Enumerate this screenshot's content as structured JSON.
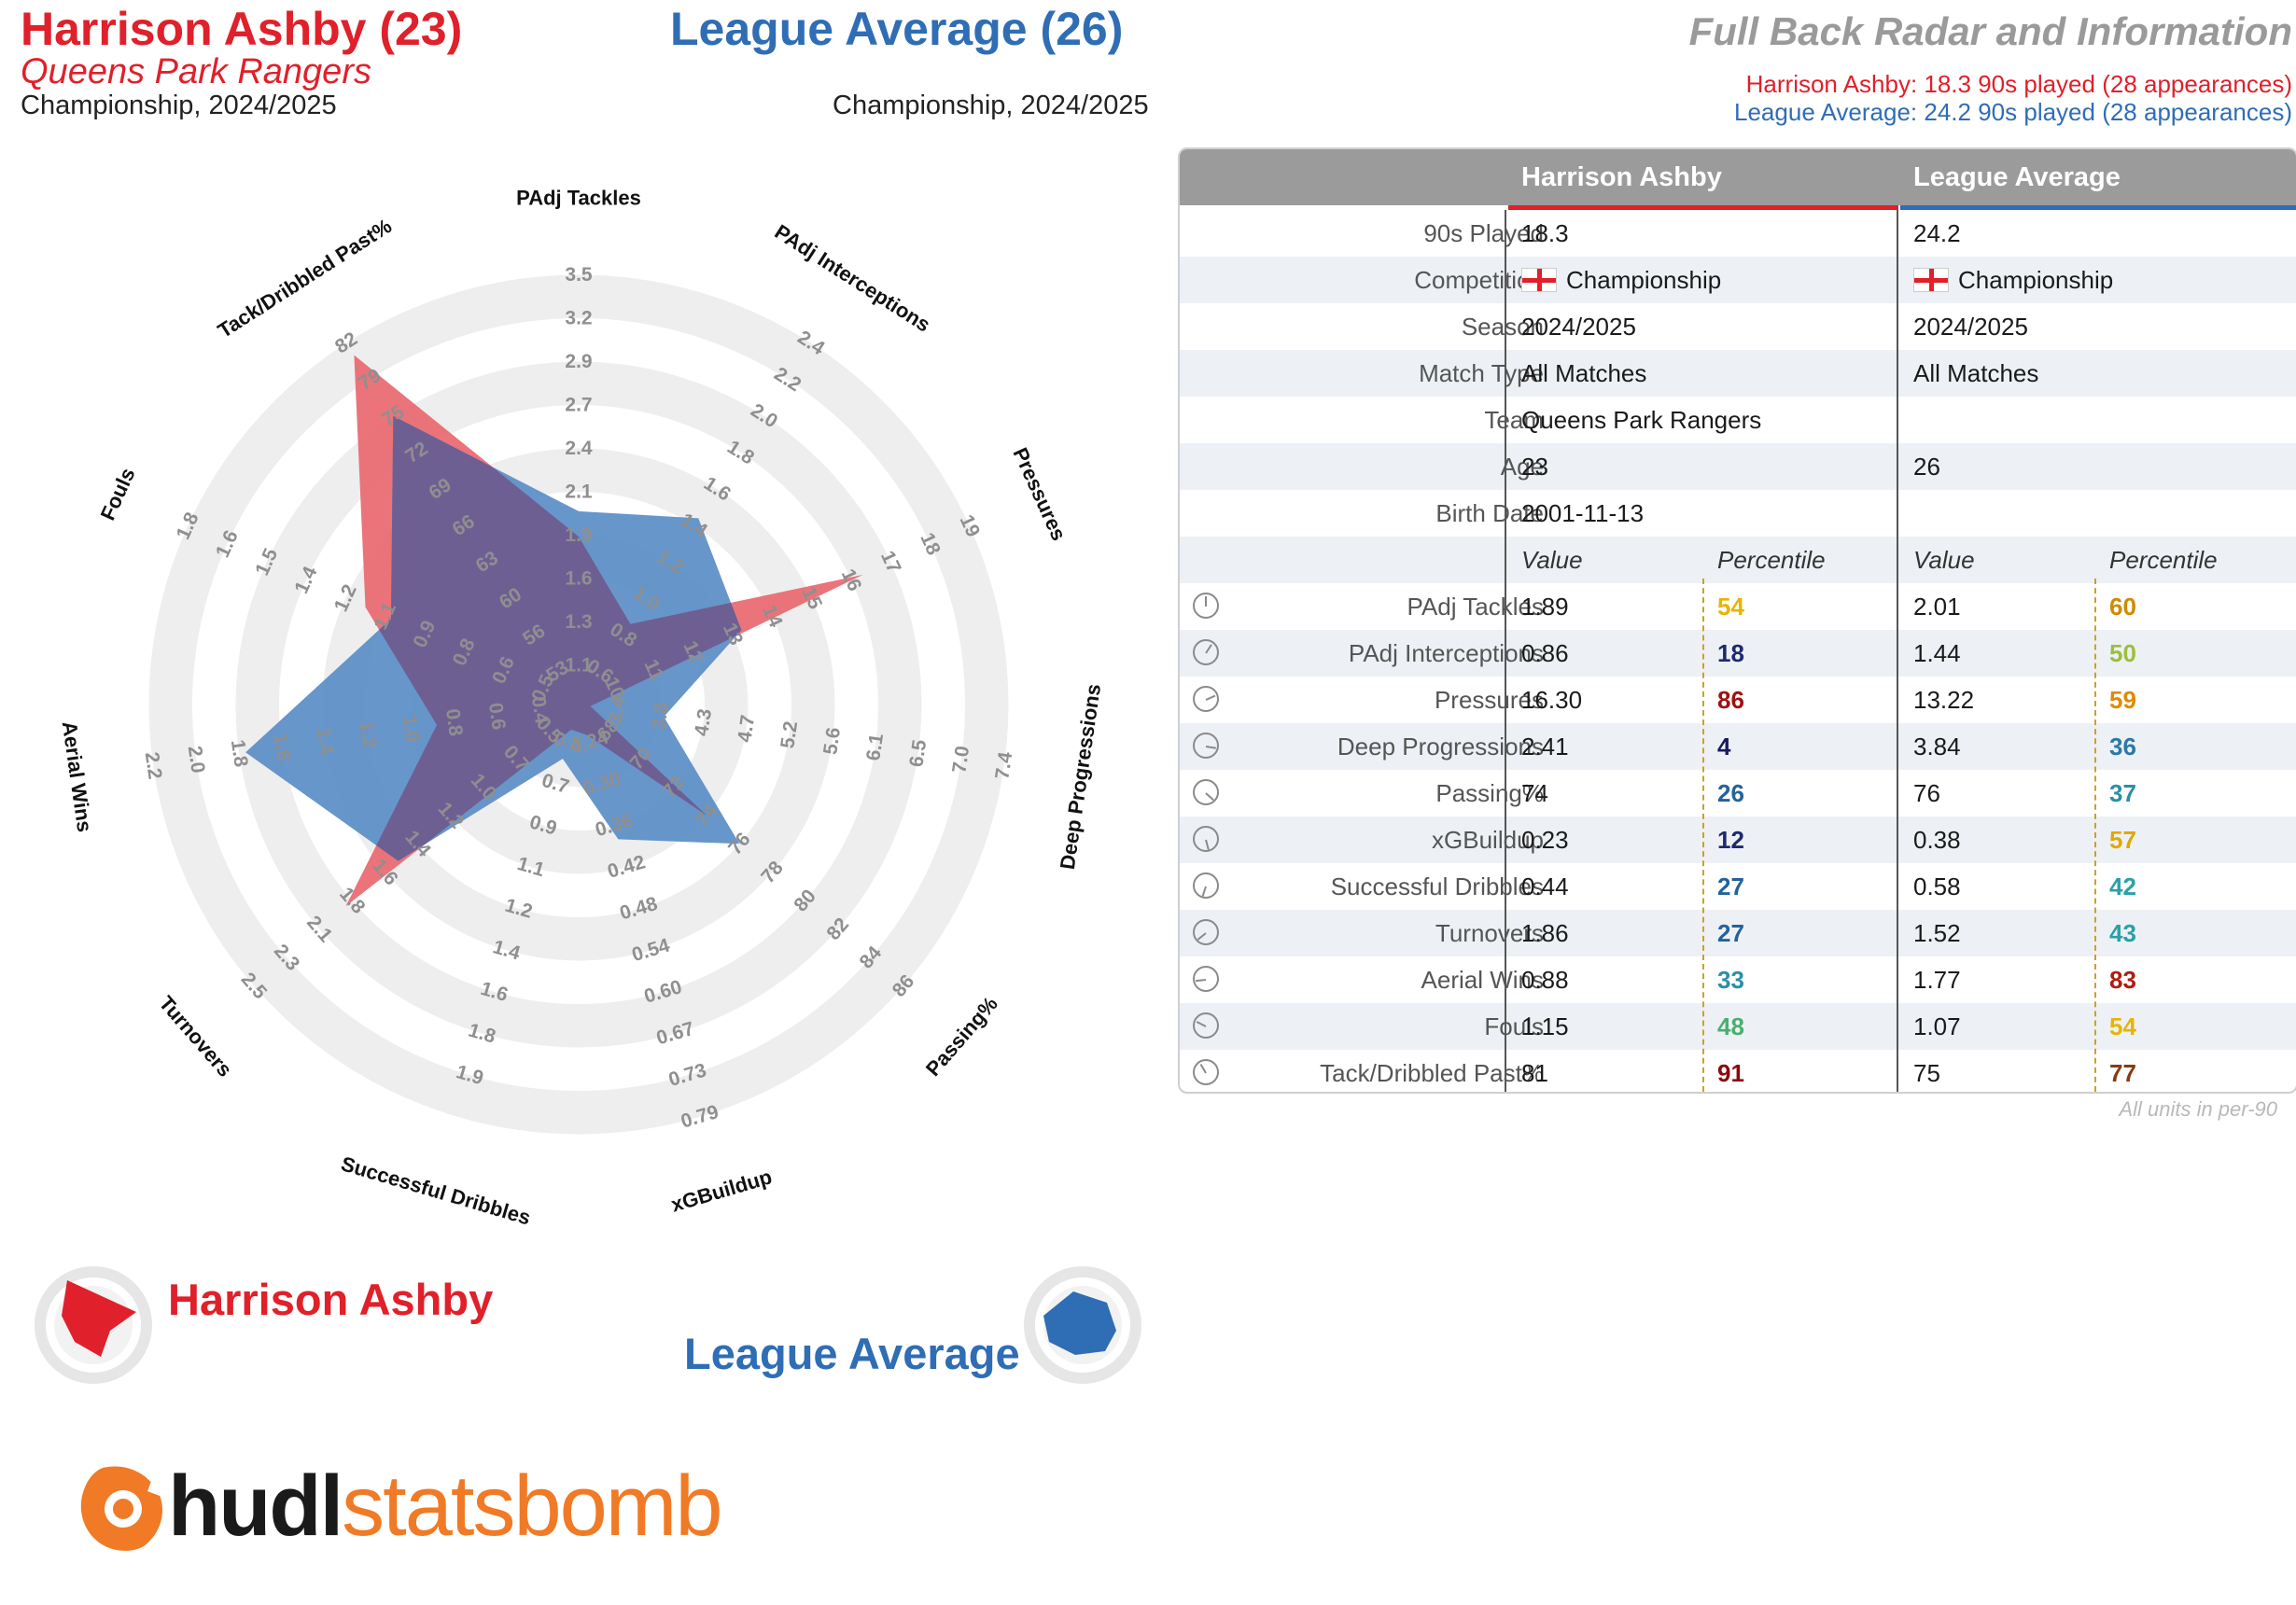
{
  "header": {
    "player_title": "Harrison Ashby (23)",
    "player_team": "Queens Park Rangers",
    "player_comp": "Championship, 2024/2025",
    "league_title": "League Average (26)",
    "league_comp": "Championship, 2024/2025",
    "main_title": "Full Back Radar and Information",
    "player_note": "Harrison Ashby: 18.3 90s played (28 appearances)",
    "league_note": "League Average: 24.2 90s played (28 appearances)"
  },
  "colors": {
    "player": "#e0202a",
    "league": "#2f6db5",
    "player_fill": "#e8656b",
    "league_fill": "#5a8dc7",
    "overlap": "#6e5f93",
    "ring": "#eeeeee"
  },
  "chart_data": {
    "type": "radar",
    "metrics": [
      {
        "name": "PAdj Tackles",
        "ticks": [
          "1.1",
          "1.3",
          "1.6",
          "1.9",
          "2.1",
          "2.4",
          "2.7",
          "2.9",
          "3.2",
          "3.5"
        ]
      },
      {
        "name": "PAdj Interceptions",
        "ticks": [
          "0.6",
          "0.8",
          "1.0",
          "1.2",
          "1.4",
          "1.6",
          "1.8",
          "2.0",
          "2.2",
          "2.4"
        ]
      },
      {
        "name": "Pressures",
        "ticks": [
          "10",
          "11",
          "12",
          "13",
          "14",
          "15",
          "16",
          "17",
          "18",
          "19"
        ]
      },
      {
        "name": "Deep Progressions",
        "ticks": [
          "3.4",
          "3.8",
          "4.3",
          "4.7",
          "5.2",
          "5.6",
          "6.1",
          "6.5",
          "7.0",
          "7.4"
        ]
      },
      {
        "name": "Passing%",
        "ticks": [
          "68",
          "70",
          "72",
          "74",
          "76",
          "78",
          "80",
          "82",
          "84",
          "86"
        ]
      },
      {
        "name": "xGBuildup",
        "ticks": [
          "0.24",
          "0.30",
          "0.36",
          "0.42",
          "0.48",
          "0.54",
          "0.60",
          "0.67",
          "0.73",
          "0.79"
        ]
      },
      {
        "name": "Successful Dribbles",
        "ticks": [
          "0.5",
          "0.7",
          "0.9",
          "1.1",
          "1.2",
          "1.4",
          "1.6",
          "1.8",
          "1.9"
        ]
      },
      {
        "name": "Turnovers",
        "ticks": [
          "0.5",
          "0.7",
          "1.0",
          "1.2",
          "1.4",
          "1.6",
          "1.8",
          "2.1",
          "2.3",
          "2.5"
        ]
      },
      {
        "name": "Aerial Wins",
        "ticks": [
          "0.4",
          "0.6",
          "0.8",
          "1.0",
          "1.2",
          "1.4",
          "1.6",
          "1.8",
          "2.0",
          "2.2"
        ]
      },
      {
        "name": "Fouls",
        "ticks": [
          "0.5",
          "0.6",
          "0.8",
          "0.9",
          "1.1",
          "1.2",
          "1.4",
          "1.5",
          "1.6",
          "1.8"
        ]
      },
      {
        "name": "Tack/Dribbled Past%",
        "ticks": [
          "53",
          "56",
          "60",
          "63",
          "66",
          "69",
          "72",
          "75",
          "79",
          "82"
        ]
      }
    ],
    "series": [
      {
        "name": "Harrison Ashby",
        "values": [
          1.89,
          0.86,
          16.3,
          2.41,
          74,
          0.23,
          0.44,
          1.86,
          0.88,
          1.15,
          81
        ]
      },
      {
        "name": "League Average",
        "values": [
          2.01,
          1.44,
          13.22,
          3.84,
          76,
          0.38,
          0.58,
          1.52,
          1.77,
          1.07,
          75
        ]
      }
    ]
  },
  "legend": {
    "player": "Harrison Ashby",
    "league": "League Average"
  },
  "brand": {
    "part1": "hudl",
    "part2": "statsbomb"
  },
  "table": {
    "col_player": "Harrison Ashby",
    "col_league": "League Average",
    "info_rows": [
      {
        "label": "90s Played",
        "p": "18.3",
        "l": "24.2"
      },
      {
        "label": "Competition",
        "p": "Championship",
        "l": "Championship"
      },
      {
        "label": "Season",
        "p": "2024/2025",
        "l": "2024/2025"
      },
      {
        "label": "Match Type",
        "p": "All Matches",
        "l": "All Matches"
      },
      {
        "label": "Team",
        "p": "Queens Park Rangers",
        "l": ""
      },
      {
        "label": "Age",
        "p": "23",
        "l": "26"
      },
      {
        "label": "Birth Date",
        "p": "2001-11-13",
        "l": ""
      }
    ],
    "sub_value": "Value",
    "sub_percentile": "Percentile",
    "stat_rows": [
      {
        "label": "PAdj Tackles",
        "pv": "1.89",
        "pp": "54",
        "lv": "2.01",
        "lp": "60",
        "pc": "#e8b400",
        "lc": "#d08a00"
      },
      {
        "label": "PAdj Interceptions",
        "pv": "0.86",
        "pp": "18",
        "lv": "1.44",
        "lp": "50",
        "pc": "#1e2a6e",
        "lc": "#9cbf3a"
      },
      {
        "label": "Pressures",
        "pv": "16.30",
        "pp": "86",
        "lv": "13.22",
        "lp": "59",
        "pc": "#a01010",
        "lc": "#e08a00"
      },
      {
        "label": "Deep Progressions",
        "pv": "2.41",
        "pp": "4",
        "lv": "3.84",
        "lp": "36",
        "pc": "#1a1a5e",
        "lc": "#2a7aa5"
      },
      {
        "label": "Passing%",
        "pv": "74",
        "pp": "26",
        "lv": "76",
        "lp": "37",
        "pc": "#24629a",
        "lc": "#2a8fa8"
      },
      {
        "label": "xGBuildup",
        "pv": "0.23",
        "pp": "12",
        "lv": "0.38",
        "lp": "57",
        "pc": "#1e2a6e",
        "lc": "#e0a800"
      },
      {
        "label": "Successful Dribbles",
        "pv": "0.44",
        "pp": "27",
        "lv": "0.58",
        "lp": "42",
        "pc": "#24629a",
        "lc": "#2aa0a8"
      },
      {
        "label": "Turnovers",
        "pv": "1.86",
        "pp": "27",
        "lv": "1.52",
        "lp": "43",
        "pc": "#24629a",
        "lc": "#2aa0a8"
      },
      {
        "label": "Aerial Wins",
        "pv": "0.88",
        "pp": "33",
        "lv": "1.77",
        "lp": "83",
        "pc": "#2a8fa8",
        "lc": "#b01c10"
      },
      {
        "label": "Fouls",
        "pv": "1.15",
        "pp": "48",
        "lv": "1.07",
        "lp": "54",
        "pc": "#4aae6e",
        "lc": "#e8b400"
      },
      {
        "label": "Tack/Dribbled Past%",
        "pv": "81",
        "pp": "91",
        "lv": "75",
        "lp": "77",
        "pc": "#8a0a0a",
        "lc": "#8a3a10"
      }
    ],
    "footnote": "All units in per-90"
  }
}
